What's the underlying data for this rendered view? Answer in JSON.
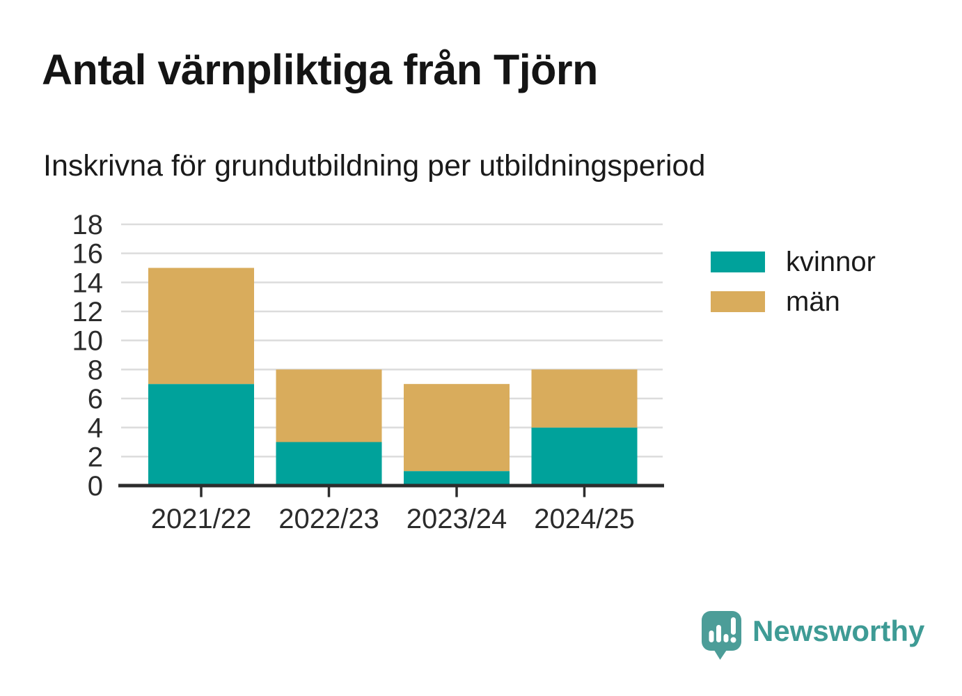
{
  "chart_data": {
    "type": "bar",
    "stacked": true,
    "title": "Antal värnpliktiga från Tjörn",
    "subtitle": "Inskrivna för grundutbildning per utbildningsperiod",
    "categories": [
      "2021/22",
      "2022/23",
      "2023/24",
      "2024/25"
    ],
    "series": [
      {
        "name": "kvinnor",
        "color": "#00A29B",
        "values": [
          7,
          3,
          1,
          4
        ]
      },
      {
        "name": "män",
        "color": "#D9AC5C",
        "values": [
          8,
          5,
          6,
          4
        ]
      }
    ],
    "totals": [
      15,
      8,
      7,
      8
    ],
    "ylim": [
      0,
      18
    ],
    "ytick_step": 2,
    "yticks": [
      0,
      2,
      4,
      6,
      8,
      10,
      12,
      14,
      16,
      18
    ],
    "grid": "horizontal",
    "legend_position": "right"
  },
  "branding": {
    "logo_text": "Newsworthy",
    "brand_color": "#3E9B95",
    "badge_color": "#4C9D98"
  },
  "style": {
    "background": "#FFFFFF",
    "grid_color": "#DCDCDC",
    "axis_color": "#2D2D2D",
    "tick_label_color": "#2B2B2B",
    "title_color": "#141414"
  }
}
